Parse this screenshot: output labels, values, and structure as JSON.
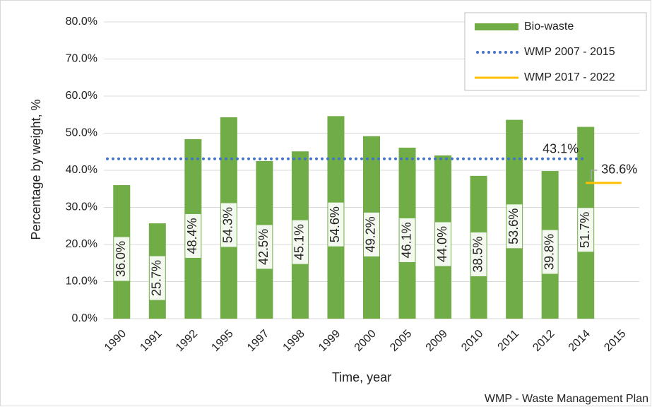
{
  "chart_data": {
    "type": "bar",
    "categories": [
      "1990",
      "1991",
      "1992",
      "1995",
      "1997",
      "1998",
      "1999",
      "2000",
      "2005",
      "2009",
      "2010",
      "2011",
      "2012",
      "2014",
      "2015"
    ],
    "series": [
      {
        "name": "Bio-waste",
        "color": "#70ad47",
        "values": [
          36.0,
          25.7,
          48.4,
          54.3,
          42.5,
          45.1,
          54.6,
          49.2,
          46.1,
          44.0,
          38.5,
          53.6,
          39.8,
          51.7,
          null
        ],
        "value_labels": [
          "36.0%",
          "25.7%",
          "48.4%",
          "54.3%",
          "42.5%",
          "45.1%",
          "54.6%",
          "49.2%",
          "46.1%",
          "44.0%",
          "38.5%",
          "53.6%",
          "39.8%",
          "51.7%",
          null
        ]
      }
    ],
    "reference_lines": [
      {
        "name": "WMP 2007 - 2015",
        "value": 43.1,
        "label": "43.1%",
        "color": "#4472c4",
        "style": "dotted"
      },
      {
        "name": "WMP 2017 - 2022",
        "value": 36.6,
        "label": "36.6%",
        "color": "#ffc000",
        "style": "solid"
      }
    ],
    "y_label": "Percentage by weight, %",
    "x_label": "Time, year",
    "footnote": "WMP - Waste Management  Plan",
    "ylim": [
      0,
      80
    ],
    "yticks": [
      {
        "value": 0,
        "label": "0.0%"
      },
      {
        "value": 10,
        "label": "10.0%"
      },
      {
        "value": 20,
        "label": "20.0%"
      },
      {
        "value": 30,
        "label": "30.0%"
      },
      {
        "value": 40,
        "label": "40.0%"
      },
      {
        "value": 50,
        "label": "50.0%"
      },
      {
        "value": 60,
        "label": "60.0%"
      },
      {
        "value": 70,
        "label": "70.0%"
      },
      {
        "value": 80,
        "label": "80.0%"
      }
    ],
    "grid": true,
    "legend": "top-right"
  }
}
